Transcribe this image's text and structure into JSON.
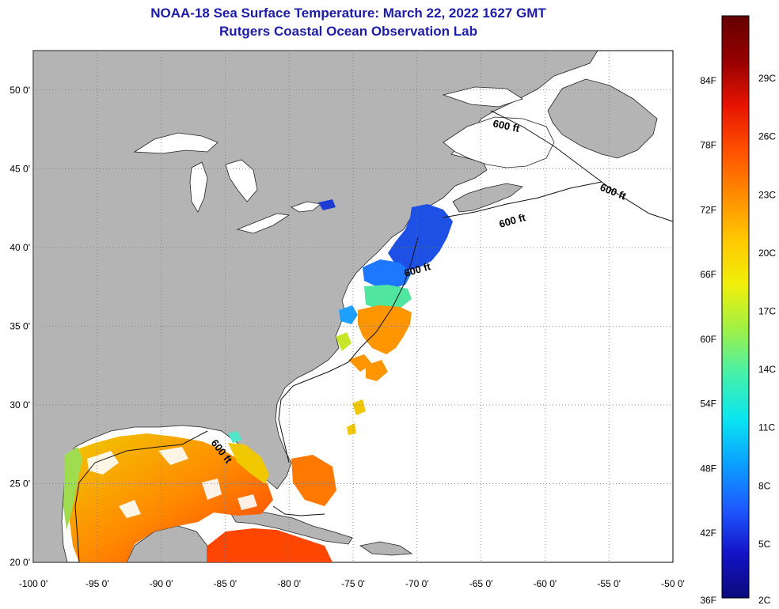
{
  "title_line1": "NOAA-18 Sea Surface Temperature:  March 22, 2022 1627 GMT",
  "title_line2": "Rutgers Coastal Ocean Observation Lab",
  "lat_labels": [
    "50 0'",
    "45 0'",
    "40 0'",
    "35 0'",
    "30 0'",
    "25 0'",
    "20 0'"
  ],
  "lat_values": [
    50,
    45,
    40,
    35,
    30,
    25,
    20
  ],
  "lon_labels": [
    "-100 0'",
    "-95 0'",
    "-90 0'",
    "-85 0'",
    "-80 0'",
    "-75 0'",
    "-70 0'",
    "-65 0'",
    "-60 0'",
    "-55 0'",
    "-50 0'"
  ],
  "lon_values": [
    -100,
    -95,
    -90,
    -85,
    -80,
    -75,
    -70,
    -65,
    -60,
    -55,
    -50
  ],
  "map_extent": {
    "lon_min": -100,
    "lon_max": -50,
    "lat_min": 20,
    "lat_max": 52.5
  },
  "contour_labels": [
    "600 ft",
    "600 ft",
    "600 ft",
    "600 ft",
    "600 ft"
  ],
  "colorbar": {
    "fahrenheit_labels": [
      "84F",
      "78F",
      "72F",
      "66F",
      "60F",
      "54F",
      "48F",
      "42F",
      "36F"
    ],
    "fahrenheit_values": [
      84,
      78,
      72,
      66,
      60,
      54,
      48,
      42,
      36
    ],
    "celsius_labels": [
      "29C",
      "26C",
      "23C",
      "20C",
      "17C",
      "14C",
      "11C",
      "8C",
      "5C",
      "2C"
    ],
    "celsius_values": [
      29,
      26,
      23,
      20,
      17,
      14,
      11,
      8,
      5,
      2
    ],
    "colors": [
      "#0a0a7a",
      "#1414c8",
      "#1e5aff",
      "#0aa0ff",
      "#0ae6f0",
      "#46f0aa",
      "#a0f046",
      "#f0f00a",
      "#ffc800",
      "#ff8c00",
      "#ff5000",
      "#e61400",
      "#960000",
      "#640000"
    ]
  },
  "colors": {
    "land": "#b4b4b4",
    "ocean_nodata": "#ffffff",
    "title": "#1c1ca8",
    "grid": "#777777"
  }
}
